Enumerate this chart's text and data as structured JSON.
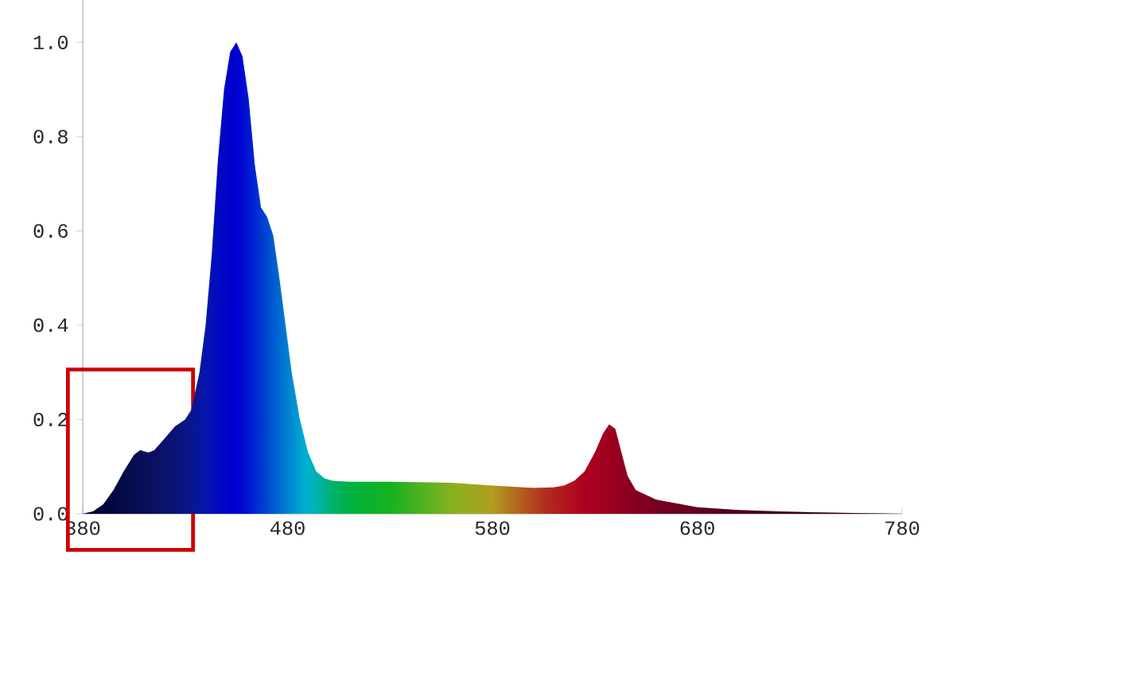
{
  "chart_data": {
    "type": "area",
    "x": [
      380,
      385,
      390,
      395,
      400,
      405,
      408,
      412,
      415,
      420,
      425,
      430,
      433,
      437,
      440,
      443,
      446,
      449,
      452,
      455,
      458,
      461,
      464,
      467,
      470,
      473,
      476,
      479,
      482,
      486,
      490,
      494,
      498,
      502,
      510,
      530,
      560,
      580,
      600,
      610,
      615,
      620,
      625,
      630,
      634,
      637,
      640,
      643,
      646,
      650,
      660,
      680,
      700,
      720,
      750,
      780
    ],
    "series": [
      {
        "values": [
          0,
          0.005,
          0.02,
          0.05,
          0.09,
          0.125,
          0.135,
          0.13,
          0.135,
          0.16,
          0.185,
          0.2,
          0.22,
          0.3,
          0.4,
          0.55,
          0.75,
          0.9,
          0.98,
          1.0,
          0.97,
          0.88,
          0.74,
          0.65,
          0.63,
          0.59,
          0.5,
          0.4,
          0.3,
          0.2,
          0.13,
          0.09,
          0.075,
          0.07,
          0.068,
          0.068,
          0.066,
          0.06,
          0.055,
          0.056,
          0.06,
          0.07,
          0.09,
          0.13,
          0.17,
          0.19,
          0.18,
          0.13,
          0.08,
          0.05,
          0.03,
          0.014,
          0.008,
          0.005,
          0.002,
          0
        ],
        "colors": [
          "#000010",
          "#000018",
          "#020522",
          "#050a30",
          "#081038",
          "#0a1244",
          "#0c1450",
          "#0d1658",
          "#0e1860",
          "#101a70",
          "#101c80",
          "#101e90",
          "#0e20a0",
          "#0a20b8",
          "#0820c8",
          "#0418d8",
          "#0010e8",
          "#0008f0",
          "#0000f8",
          "#0000ff",
          "#0010ff",
          "#0020ff",
          "#0038ff",
          "#0050ff",
          "#0068ff",
          "#0080ff",
          "#0098ff",
          "#00b0ff",
          "#00c8ff",
          "#00e8ff",
          "#00ffff",
          "#00ffd0",
          "#00ffa0",
          "#00ff70",
          "#00ff30",
          "#20ff00",
          "#c0ff00",
          "#ffe000",
          "#ff6000",
          "#ff3000",
          "#ff2000",
          "#ff1000",
          "#f80000",
          "#f00000",
          "#e80000",
          "#e00000",
          "#d80000",
          "#d00000",
          "#c80000",
          "#c00000",
          "#a80000",
          "#900000",
          "#700000",
          "#580000",
          "#400000",
          "#300000"
        ]
      }
    ],
    "xlim": [
      380,
      780
    ],
    "ylim": [
      0,
      1.09
    ],
    "xticks": [
      380,
      480,
      580,
      680,
      780
    ],
    "yticks": [
      {
        "value": 0,
        "label": "0.0"
      },
      {
        "value": 0.2,
        "label": "0.2"
      },
      {
        "value": 0.4,
        "label": "0.4"
      },
      {
        "value": 0.6,
        "label": "0.6"
      },
      {
        "value": 0.8,
        "label": "0.8"
      },
      {
        "value": 1.0,
        "label": "1.0"
      }
    ]
  }
}
